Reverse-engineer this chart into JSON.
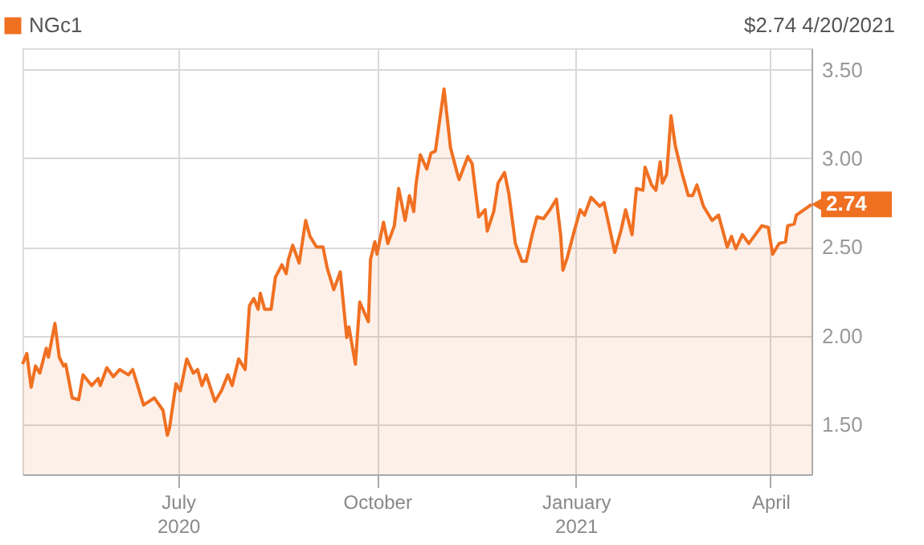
{
  "chart_data": {
    "type": "area",
    "x": [
      "2020-04-20",
      "2020-04-22",
      "2020-04-24",
      "2020-04-26",
      "2020-04-28",
      "2020-05-01",
      "2020-05-02",
      "2020-05-05",
      "2020-05-07",
      "2020-05-09",
      "2020-05-10",
      "2020-05-13",
      "2020-05-16",
      "2020-05-18",
      "2020-05-22",
      "2020-05-25",
      "2020-05-26",
      "2020-05-29",
      "2020-06-01",
      "2020-06-04",
      "2020-06-08",
      "2020-06-10",
      "2020-06-15",
      "2020-06-20",
      "2020-06-24",
      "2020-06-26",
      "2020-06-27",
      "2020-06-30",
      "2020-07-02",
      "2020-07-05",
      "2020-07-08",
      "2020-07-10",
      "2020-07-12",
      "2020-07-14",
      "2020-07-18",
      "2020-07-21",
      "2020-07-24",
      "2020-07-26",
      "2020-07-29",
      "2020-08-01",
      "2020-08-03",
      "2020-08-05",
      "2020-08-07",
      "2020-08-08",
      "2020-08-10",
      "2020-08-13",
      "2020-08-15",
      "2020-08-18",
      "2020-08-20",
      "2020-08-21",
      "2020-08-23",
      "2020-08-26",
      "2020-08-29",
      "2020-08-31",
      "2020-09-03",
      "2020-09-06",
      "2020-09-08",
      "2020-09-11",
      "2020-09-14",
      "2020-09-17",
      "2020-09-18",
      "2020-09-21",
      "2020-09-23",
      "2020-09-27",
      "2020-09-28",
      "2020-09-30",
      "2020-10-01",
      "2020-10-04",
      "2020-10-06",
      "2020-10-09",
      "2020-10-11",
      "2020-10-14",
      "2020-10-16",
      "2020-10-18",
      "2020-10-19",
      "2020-10-21",
      "2020-10-24",
      "2020-10-26",
      "2020-10-28",
      "2020-11-01",
      "2020-11-04",
      "2020-11-07",
      "2020-11-08",
      "2020-11-12",
      "2020-11-14",
      "2020-11-17",
      "2020-11-20",
      "2020-11-21",
      "2020-11-24",
      "2020-11-26",
      "2020-11-29",
      "2020-12-01",
      "2020-12-04",
      "2020-12-07",
      "2020-12-09",
      "2020-12-12",
      "2020-12-14",
      "2020-12-17",
      "2020-12-20",
      "2020-12-23",
      "2020-12-25",
      "2020-12-26",
      "2020-12-28",
      "2020-12-31",
      "2021-01-03",
      "2021-01-05",
      "2021-01-08",
      "2021-01-12",
      "2021-01-14",
      "2021-01-16",
      "2021-01-19",
      "2021-01-22",
      "2021-01-24",
      "2021-01-27",
      "2021-01-29",
      "2021-02-01",
      "2021-02-02",
      "2021-02-05",
      "2021-02-07",
      "2021-02-09",
      "2021-02-10",
      "2021-02-12",
      "2021-02-14",
      "2021-02-16",
      "2021-02-19",
      "2021-02-22",
      "2021-02-24",
      "2021-02-26",
      "2021-03-01",
      "2021-03-05",
      "2021-03-08",
      "2021-03-12",
      "2021-03-14",
      "2021-03-16",
      "2021-03-19",
      "2021-03-22",
      "2021-03-25",
      "2021-03-28",
      "2021-03-31",
      "2021-04-02",
      "2021-04-05",
      "2021-04-08",
      "2021-04-09",
      "2021-04-12",
      "2021-04-13",
      "2021-04-20"
    ],
    "series": [
      {
        "name": "NGc1",
        "color": "#f07022",
        "values": [
          1.84,
          1.9,
          1.71,
          1.83,
          1.79,
          1.93,
          1.88,
          2.07,
          1.88,
          1.83,
          1.84,
          1.65,
          1.64,
          1.78,
          1.72,
          1.76,
          1.72,
          1.82,
          1.77,
          1.81,
          1.78,
          1.81,
          1.61,
          1.65,
          1.58,
          1.44,
          1.48,
          1.73,
          1.69,
          1.87,
          1.79,
          1.81,
          1.72,
          1.78,
          1.63,
          1.69,
          1.78,
          1.72,
          1.87,
          1.81,
          2.17,
          2.21,
          2.15,
          2.24,
          2.15,
          2.15,
          2.33,
          2.4,
          2.35,
          2.43,
          2.51,
          2.41,
          2.65,
          2.56,
          2.5,
          2.5,
          2.38,
          2.26,
          2.36,
          1.99,
          2.05,
          1.84,
          2.19,
          2.08,
          2.43,
          2.53,
          2.46,
          2.64,
          2.52,
          2.62,
          2.83,
          2.65,
          2.79,
          2.7,
          2.85,
          3.02,
          2.94,
          3.03,
          3.04,
          3.39,
          3.06,
          2.92,
          2.88,
          3.01,
          2.97,
          2.67,
          2.71,
          2.59,
          2.7,
          2.86,
          2.92,
          2.8,
          2.52,
          2.42,
          2.42,
          2.58,
          2.67,
          2.66,
          2.71,
          2.77,
          2.56,
          2.37,
          2.44,
          2.58,
          2.71,
          2.68,
          2.78,
          2.73,
          2.75,
          2.64,
          2.47,
          2.6,
          2.71,
          2.57,
          2.83,
          2.82,
          2.95,
          2.85,
          2.82,
          2.98,
          2.86,
          2.91,
          3.24,
          3.07,
          2.92,
          2.79,
          2.79,
          2.85,
          2.73,
          2.65,
          2.68,
          2.5,
          2.56,
          2.49,
          2.57,
          2.52,
          2.57,
          2.62,
          2.61,
          2.46,
          2.52,
          2.53,
          2.62,
          2.63,
          2.68,
          2.74
        ],
        "value_labels": [
          null,
          null,
          null,
          null,
          null,
          null,
          null,
          null,
          null,
          null,
          null,
          null,
          null,
          null,
          null,
          null,
          null,
          null,
          null,
          null,
          null,
          null,
          null,
          null,
          null,
          null,
          null,
          null,
          null,
          null,
          null,
          null,
          null,
          null,
          null,
          null,
          null,
          null,
          null,
          null,
          null,
          null,
          null,
          null,
          null,
          null,
          null,
          null,
          null,
          null,
          null,
          null,
          null,
          null,
          null,
          null,
          null,
          null,
          null,
          null,
          null,
          null,
          null,
          null,
          null,
          null,
          null,
          null,
          null,
          null,
          null,
          null,
          null,
          null,
          null,
          null,
          null,
          null,
          null,
          null,
          null,
          null,
          null,
          null,
          null,
          null,
          null,
          null,
          null,
          null,
          null,
          null,
          null,
          null,
          null,
          null,
          null,
          null,
          null,
          null,
          null,
          null,
          null,
          null,
          null,
          null,
          null,
          null,
          null,
          null,
          null,
          null,
          null,
          null,
          null,
          null,
          null,
          null,
          null,
          null,
          null,
          null,
          null,
          null,
          null,
          null,
          null,
          null,
          null,
          null,
          null,
          null,
          null,
          null,
          null,
          null,
          null,
          null,
          null,
          null,
          null,
          null,
          null,
          null,
          null,
          "2.74"
        ]
      }
    ],
    "xlim": [
      "2020-04-20",
      "2021-04-20"
    ],
    "xticks": [
      {
        "value": "2020-07-01",
        "label": "July\n2020"
      },
      {
        "value": "2020-10-01",
        "label": "October"
      },
      {
        "value": "2021-01-01",
        "label": "January\n2021"
      },
      {
        "value": "2021-04-01",
        "label": "April"
      }
    ],
    "ylim": [
      1.22,
      3.62
    ],
    "yticks": [
      {
        "value": 1.5,
        "label": "1.50"
      },
      {
        "value": 2.0,
        "label": "2.00"
      },
      {
        "value": 2.5,
        "label": "2.50"
      },
      {
        "value": 3.0,
        "label": "3.00"
      },
      {
        "value": 3.5,
        "label": "3.50"
      }
    ],
    "annotations": [
      "$2.74  4/20/2021"
    ],
    "grid": true,
    "legend": "top left"
  }
}
